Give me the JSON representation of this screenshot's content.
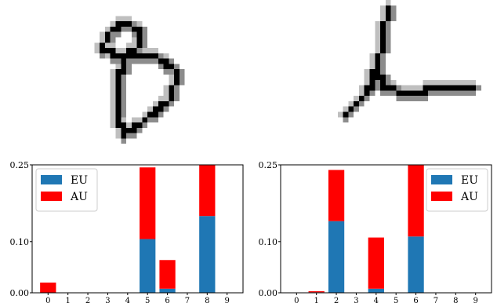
{
  "images": [
    {
      "name": "handwritten-digit-8",
      "grid": 28
    },
    {
      "name": "handwritten-digit-4",
      "grid": 28
    }
  ],
  "colors": {
    "eu": "#1f77b4",
    "au": "#ff0000",
    "axis": "#000000",
    "pixel": "#000000"
  },
  "chart_data": [
    {
      "type": "bar",
      "stacked": true,
      "categories": [
        "0",
        "1",
        "2",
        "3",
        "4",
        "5",
        "6",
        "7",
        "8",
        "9"
      ],
      "series": [
        {
          "name": "EU",
          "values": [
            0,
            0,
            0,
            0,
            0,
            0.105,
            0.008,
            0,
            0.15,
            0
          ]
        },
        {
          "name": "AU",
          "values": [
            0.02,
            0,
            0,
            0,
            0,
            0.14,
            0.056,
            0,
            0.1,
            0
          ]
        }
      ],
      "yticks": [
        "0.00",
        "0.10",
        "0.25"
      ],
      "ytick_values": [
        0,
        0.1,
        0.25
      ],
      "ylim": [
        0,
        0.25
      ],
      "legend": "top-left",
      "grid": false
    },
    {
      "type": "bar",
      "stacked": true,
      "categories": [
        "0",
        "1",
        "2",
        "3",
        "4",
        "5",
        "6",
        "7",
        "8",
        "9"
      ],
      "series": [
        {
          "name": "EU",
          "values": [
            0,
            0.001,
            0.14,
            0,
            0.008,
            0,
            0.11,
            0,
            0,
            0
          ]
        },
        {
          "name": "AU",
          "values": [
            0,
            0.002,
            0.1,
            0,
            0.1,
            0,
            0.14,
            0,
            0,
            0
          ]
        }
      ],
      "yticks": [
        "0.00",
        "0.10",
        "0.25"
      ],
      "ytick_values": [
        0,
        0.1,
        0.25
      ],
      "ylim": [
        0,
        0.25
      ],
      "legend": "top-right",
      "grid": false
    }
  ]
}
